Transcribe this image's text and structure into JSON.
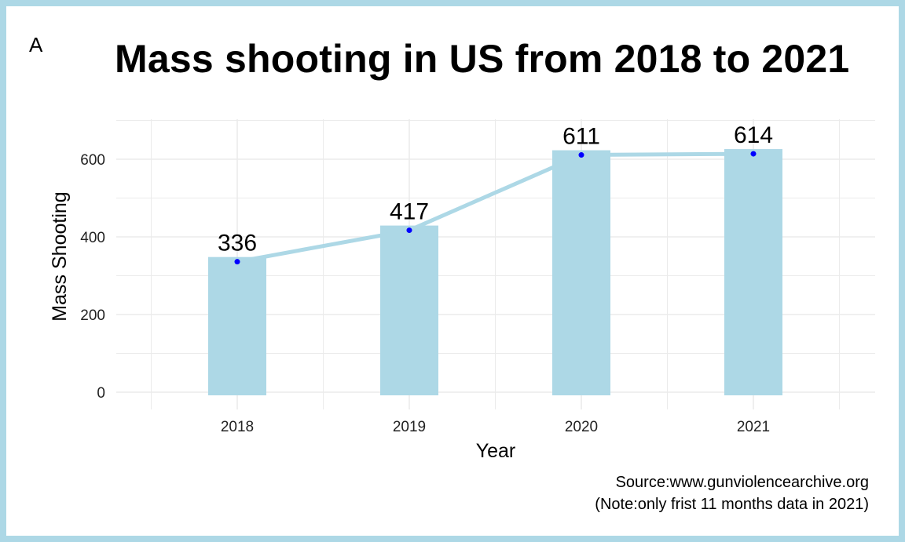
{
  "panel_tag": "A",
  "colors": {
    "frame": "#add8e6",
    "bar": "#add8e6",
    "line": "#add8e6",
    "point": "#0000ff",
    "grid": "#ebebeb",
    "text": "#000000"
  },
  "caption": {
    "line1": "Source:www.gunviolencearchive.org",
    "line2": "(Note:only frist 11 months data in 2021)"
  },
  "chart_data": {
    "type": "bar",
    "title": "Mass shooting in US from 2018 to 2021",
    "xlabel": "Year",
    "ylabel": "Mass Shooting",
    "categories": [
      "2018",
      "2019",
      "2020",
      "2021"
    ],
    "values": [
      336,
      417,
      611,
      614
    ],
    "data_labels": [
      "336",
      "417",
      "611",
      "614"
    ],
    "overlay": "line with points",
    "yticks": [
      0,
      200,
      400,
      600
    ],
    "ylim": [
      0,
      720
    ],
    "grid": true,
    "legend": "none"
  }
}
